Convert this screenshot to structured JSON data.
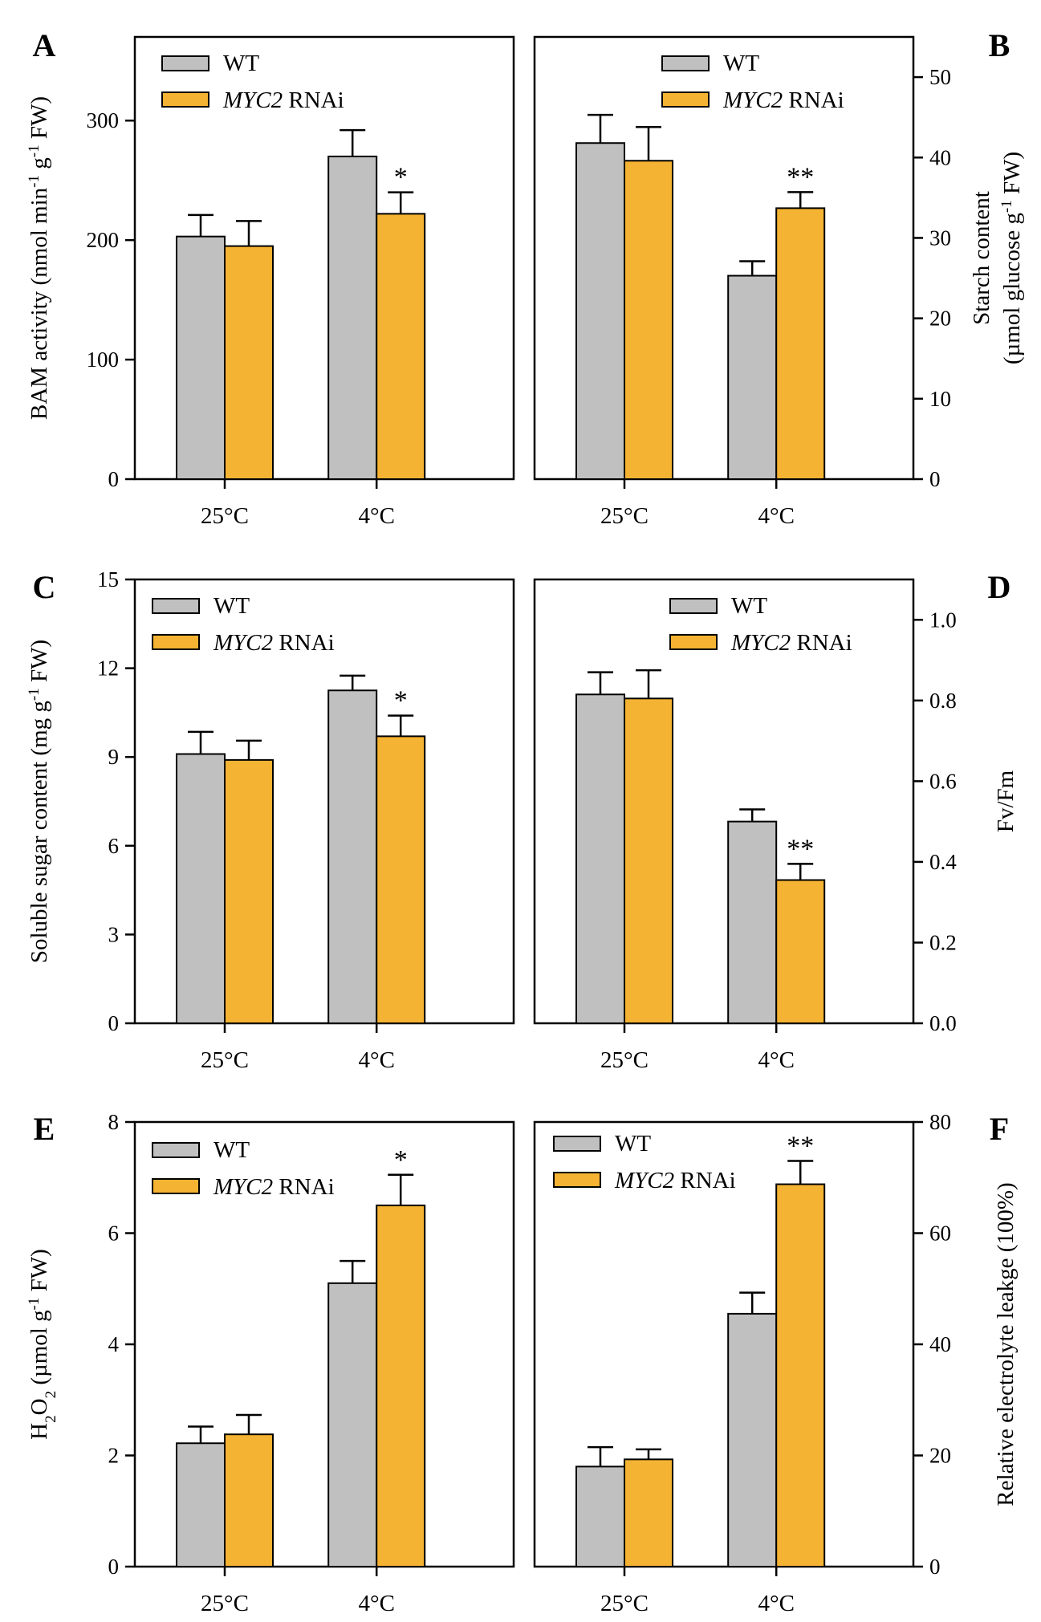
{
  "colors": {
    "wt": "#c0c0c0",
    "rnai": "#f4b332",
    "axis": "#000000"
  },
  "legend": {
    "wt": "WT",
    "rnai_gene": "MYC2",
    "rnai_suffix": " RNAi"
  },
  "chart_data": [
    {
      "panel": "A",
      "type": "bar",
      "side": "left",
      "ylabel_parts": [
        "BAM activity (nmol min",
        "-1",
        " g",
        "-1",
        " FW)"
      ],
      "ylim": [
        0,
        370
      ],
      "ticks": [
        0,
        100,
        200,
        300
      ],
      "categories": [
        "25°C",
        "4°C"
      ],
      "series": [
        {
          "name": "WT",
          "values": [
            203,
            270
          ],
          "errors": [
            18,
            22
          ]
        },
        {
          "name": "MYC2 RNAi",
          "values": [
            195,
            222
          ],
          "errors": [
            21,
            18
          ]
        }
      ],
      "annotations": [
        {
          "category": 1,
          "series": 1,
          "text": "*"
        }
      ]
    },
    {
      "panel": "B",
      "type": "bar",
      "side": "right",
      "ylabel_lines": [
        "Starch content",
        "(µmol glucose g-1 FW)"
      ],
      "ylabel_parts": [
        "(µmol glucose g",
        "-1",
        " FW)"
      ],
      "ylabel_line1": "Starch content",
      "ylim": [
        0,
        55
      ],
      "ticks": [
        0,
        10,
        20,
        30,
        40,
        50
      ],
      "categories": [
        "25°C",
        "4°C"
      ],
      "series": [
        {
          "name": "WT",
          "values": [
            41.8,
            25.3
          ],
          "errors": [
            3.5,
            1.8
          ]
        },
        {
          "name": "MYC2 RNAi",
          "values": [
            39.6,
            33.7
          ],
          "errors": [
            4.2,
            2.0
          ]
        }
      ],
      "annotations": [
        {
          "category": 1,
          "series": 1,
          "text": "**"
        }
      ]
    },
    {
      "panel": "C",
      "type": "bar",
      "side": "left",
      "ylabel_parts": [
        "Soluble sugar content (mg g",
        "-1",
        " FW)"
      ],
      "ylim": [
        0,
        15
      ],
      "ticks": [
        0,
        3,
        6,
        9,
        12,
        15
      ],
      "categories": [
        "25°C",
        "4°C"
      ],
      "series": [
        {
          "name": "WT",
          "values": [
            9.1,
            11.25
          ],
          "errors": [
            0.75,
            0.5
          ]
        },
        {
          "name": "MYC2 RNAi",
          "values": [
            8.9,
            9.7
          ],
          "errors": [
            0.65,
            0.7
          ]
        }
      ],
      "annotations": [
        {
          "category": 1,
          "series": 1,
          "text": "*"
        }
      ]
    },
    {
      "panel": "D",
      "type": "bar",
      "side": "right",
      "ylabel_parts": [
        "Fv/Fm"
      ],
      "ylim": [
        0,
        1.1
      ],
      "ticks": [
        0.0,
        0.2,
        0.4,
        0.6,
        0.8,
        1.0
      ],
      "tick_labels": [
        "0.0",
        "0.2",
        "0.4",
        "0.6",
        "0.8",
        "1.0"
      ],
      "categories": [
        "25°C",
        "4°C"
      ],
      "series": [
        {
          "name": "WT",
          "values": [
            0.815,
            0.5
          ],
          "errors": [
            0.055,
            0.03
          ]
        },
        {
          "name": "MYC2 RNAi",
          "values": [
            0.805,
            0.355
          ],
          "errors": [
            0.07,
            0.04
          ]
        }
      ],
      "annotations": [
        {
          "category": 1,
          "series": 1,
          "text": "**"
        }
      ]
    },
    {
      "panel": "E",
      "type": "bar",
      "side": "left",
      "ylabel_parts": [
        "H",
        "2",
        "O",
        "2",
        " (µmol g",
        "-1",
        " FW)"
      ],
      "ylim": [
        0,
        8
      ],
      "ticks": [
        0,
        2,
        4,
        6,
        8
      ],
      "categories": [
        "25°C",
        "4°C"
      ],
      "series": [
        {
          "name": "WT",
          "values": [
            2.22,
            5.1
          ],
          "errors": [
            0.3,
            0.4
          ]
        },
        {
          "name": "MYC2 RNAi",
          "values": [
            2.38,
            6.5
          ],
          "errors": [
            0.35,
            0.55
          ]
        }
      ],
      "annotations": [
        {
          "category": 1,
          "series": 1,
          "text": "*"
        }
      ]
    },
    {
      "panel": "F",
      "type": "bar",
      "side": "right",
      "ylabel_parts": [
        "Relative electrolyte leakge (100%)"
      ],
      "ylim": [
        0,
        80
      ],
      "ticks": [
        0,
        20,
        40,
        60,
        80
      ],
      "categories": [
        "25°C",
        "4°C"
      ],
      "series": [
        {
          "name": "WT",
          "values": [
            18,
            45.5
          ],
          "errors": [
            3.5,
            3.8
          ]
        },
        {
          "name": "MYC2 RNAi",
          "values": [
            19.3,
            68.8
          ],
          "errors": [
            1.8,
            4.2
          ]
        }
      ],
      "annotations": [
        {
          "category": 1,
          "series": 1,
          "text": "**"
        }
      ]
    }
  ]
}
